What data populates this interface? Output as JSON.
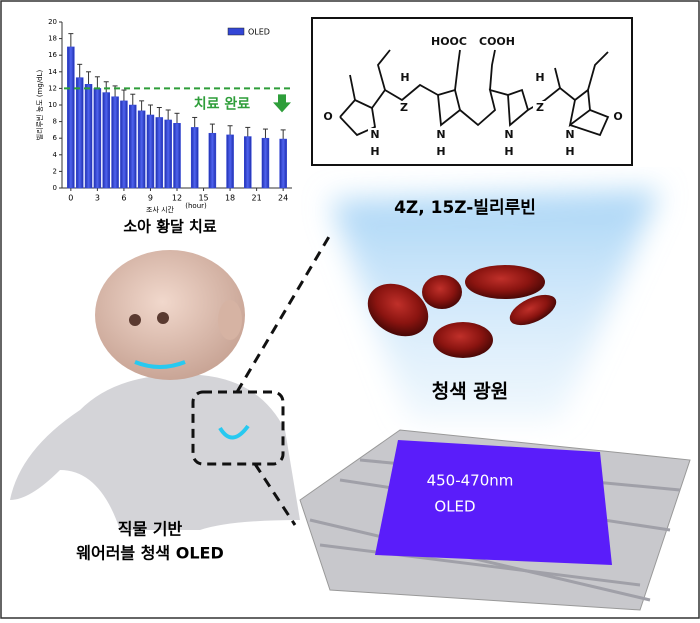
{
  "chart_data": {
    "type": "bar",
    "legend_label": "OLED",
    "y_label": "빌리루빈 농도 (mg/dL)",
    "x_label": "조사 시간",
    "x_unit": "(hour)",
    "caption": "소아 황달 치료",
    "x": [
      0,
      1,
      2,
      3,
      4,
      5,
      6,
      7,
      8,
      9,
      10,
      11,
      12,
      14,
      16,
      18,
      20,
      22,
      24
    ],
    "series": [
      {
        "name": "OLED",
        "color": "#3346d6",
        "values": [
          17,
          13.3,
          12.5,
          12,
          11.5,
          11,
          10.5,
          10,
          9.3,
          8.8,
          8.5,
          8.2,
          7.8,
          7.3,
          6.6,
          6.4,
          6.2,
          6,
          5.9
        ],
        "errors": [
          1.6,
          1.6,
          1.5,
          1.4,
          1.3,
          1.3,
          1.3,
          1.3,
          1.2,
          1.2,
          1.2,
          1.2,
          1.2,
          1.2,
          1.1,
          1.1,
          1.1,
          1.1,
          1.1
        ]
      }
    ],
    "xlim": [
      -1,
      25
    ],
    "xticks": [
      0,
      3,
      6,
      9,
      12,
      15,
      18,
      21,
      24
    ],
    "ylim": [
      0,
      20
    ],
    "yticks": [
      0,
      2,
      4,
      6,
      8,
      10,
      12,
      14,
      16,
      18,
      20
    ],
    "reference_line": {
      "value": 12,
      "label": "치료 완료",
      "color": "#2e9e3a"
    }
  },
  "structure": {
    "labels": [
      "HOOC",
      "COOH",
      "O",
      "N",
      "H",
      "H",
      "Z",
      "N",
      "H",
      "N",
      "H",
      "H",
      "Z",
      "N",
      "H",
      "O"
    ],
    "name": "4Z, 15Z-빌리루빈"
  },
  "light_source": "청색 광원",
  "oled_panel": [
    "450-470nm",
    "OLED"
  ],
  "device": [
    "직물 기반",
    "웨어러블 청색 OLED"
  ]
}
